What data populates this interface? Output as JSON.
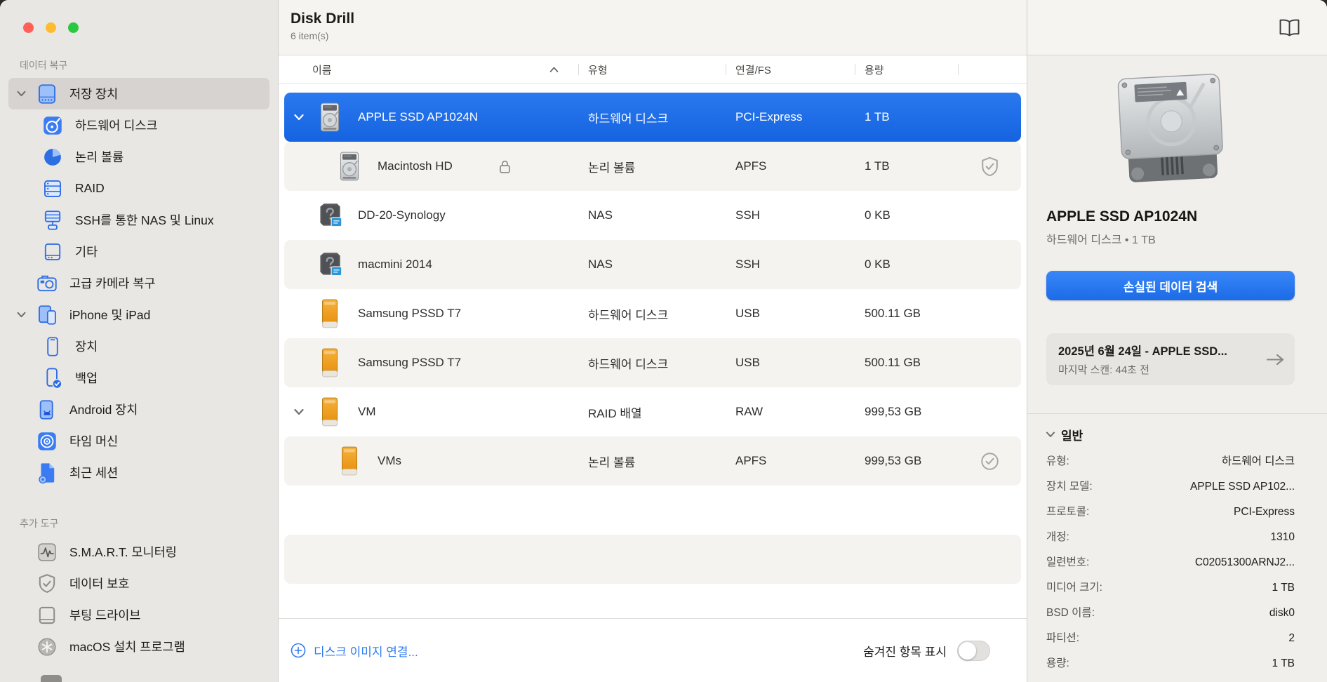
{
  "toolbar": {
    "title": "Disk Drill",
    "item_count": "6 item(s)"
  },
  "sidebar": {
    "sections": [
      {
        "label": "데이터 복구",
        "items": [
          {
            "label": "저장 장치",
            "icon": "internal-drive",
            "chevron": true,
            "selected": true
          },
          {
            "label": "하드웨어 디스크",
            "icon": "hardware-disk",
            "indent": 1
          },
          {
            "label": "논리 볼륨",
            "icon": "logical-volume",
            "indent": 1
          },
          {
            "label": "RAID",
            "icon": "raid",
            "indent": 1
          },
          {
            "label": "SSH를 통한 NAS 및 Linux",
            "icon": "nas-linux",
            "indent": 1
          },
          {
            "label": "기타",
            "icon": "other-drive",
            "indent": 1
          },
          {
            "label": "고급 카메라 복구",
            "icon": "camera"
          },
          {
            "label": "iPhone 및 iPad",
            "icon": "iphone-ipad",
            "chevron": true
          },
          {
            "label": "장치",
            "icon": "phone",
            "indent": 1
          },
          {
            "label": "백업",
            "icon": "phone-backup",
            "indent": 1
          },
          {
            "label": "Android 장치",
            "icon": "android-phone"
          },
          {
            "label": "타임 머신",
            "icon": "time-machine"
          },
          {
            "label": "최근 세션",
            "icon": "recent-session"
          }
        ]
      },
      {
        "label": "추가 도구",
        "items": [
          {
            "label": "S.M.A.R.T. 모니터링",
            "icon": "smart-monitoring"
          },
          {
            "label": "데이터 보호",
            "icon": "data-protection"
          },
          {
            "label": "부팅 드라이브",
            "icon": "boot-drive"
          },
          {
            "label": "macOS 설치 프로그램",
            "icon": "macos-installer"
          }
        ]
      }
    ]
  },
  "table": {
    "columns": [
      {
        "label": "이름",
        "sort": "asc"
      },
      {
        "label": "유형"
      },
      {
        "label": "연결/FS"
      },
      {
        "label": "용량"
      }
    ],
    "rows": [
      {
        "name": "APPLE SSD AP1024N",
        "type": "하드웨어 디스크",
        "connection": "PCI-Express",
        "capacity": "1 TB",
        "icon": "internal-hdd",
        "chevron": true,
        "selected": true
      },
      {
        "name": "Macintosh HD",
        "type": "논리 볼륨",
        "connection": "APFS",
        "capacity": "1 TB",
        "icon": "internal-hdd",
        "indent": 1,
        "locked": true,
        "check": "shield-check"
      },
      {
        "name": "DD-20-Synology",
        "type": "NAS",
        "connection": "SSH",
        "capacity": "0 KB",
        "icon": "nas-share"
      },
      {
        "name": "macmini 2014",
        "type": "NAS",
        "connection": "SSH",
        "capacity": "0 KB",
        "icon": "nas-share"
      },
      {
        "name": "Samsung PSSD T7",
        "type": "하드웨어 디스크",
        "connection": "USB",
        "capacity": "500.11 GB",
        "icon": "external-drive"
      },
      {
        "name": "Samsung PSSD T7",
        "type": "하드웨어 디스크",
        "connection": "USB",
        "capacity": "500.11 GB",
        "icon": "external-drive"
      },
      {
        "name": "VM",
        "type": "RAID 배열",
        "connection": "RAW",
        "capacity": "999,53 GB",
        "icon": "external-drive",
        "chevron": true
      },
      {
        "name": "VMs",
        "type": "논리 볼륨",
        "connection": "APFS",
        "capacity": "999,53 GB",
        "icon": "external-drive",
        "indent": 1,
        "check": "circle-check"
      }
    ]
  },
  "footer": {
    "attach_disk_image": "디스크 이미지 연결...",
    "show_hidden_label": "숨겨진 항목 표시",
    "show_hidden_on": false
  },
  "inspector": {
    "device_name": "APPLE SSD AP1024N",
    "device_meta": "하드웨어 디스크 • 1 TB",
    "scan_button": "손실된 데이터 검색",
    "last_scan": {
      "title": "2025년 6월 24일 - APPLE SSD...",
      "subtitle": "마지막 스캔: 44초 전"
    },
    "general": {
      "header": "일반",
      "rows": [
        {
          "label": "유형:",
          "value": "하드웨어 디스크"
        },
        {
          "label": "장치 모델:",
          "value": "APPLE SSD AP102..."
        },
        {
          "label": "프로토콜:",
          "value": "PCI-Express"
        },
        {
          "label": "개정:",
          "value": "1310"
        },
        {
          "label": "일련번호:",
          "value": "C02051300ARNJ2..."
        },
        {
          "label": "미디어 크기:",
          "value": "1 TB"
        },
        {
          "label": "BSD 이름:",
          "value": "disk0"
        },
        {
          "label": "파티션:",
          "value": "2"
        },
        {
          "label": "용량:",
          "value": "1 TB"
        }
      ]
    }
  },
  "colors": {
    "selection_blue": "#1563e0",
    "accent_button_blue": "#1b6be8",
    "link_blue": "#2e7bf5",
    "sidebar_icon_blue": "#2e6ee3",
    "traffic_red": "#ff5f57",
    "traffic_yellow": "#febc2e",
    "traffic_green": "#28c840"
  }
}
